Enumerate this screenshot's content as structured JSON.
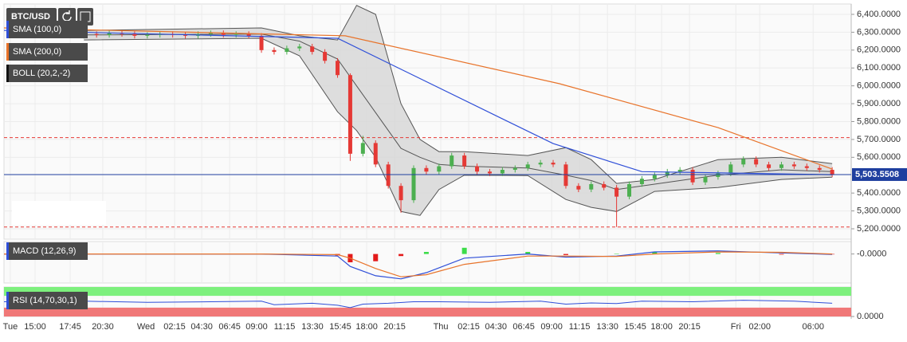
{
  "symbol": "BTC/USD",
  "chart_data": [
    {
      "type": "candlestick",
      "x": [
        0,
        1,
        2,
        3,
        4,
        5,
        6,
        7,
        8,
        9,
        10,
        11,
        12,
        13,
        14,
        15,
        16,
        17,
        18,
        19,
        20,
        21,
        22,
        23,
        24,
        25,
        26,
        27,
        28,
        29,
        30,
        31,
        32,
        33,
        34,
        35,
        36,
        37,
        38,
        39,
        40,
        41,
        42,
        43,
        44,
        45,
        46,
        47,
        48,
        49,
        50,
        51,
        52,
        53,
        54,
        55,
        56,
        57,
        58,
        59
      ],
      "open": [
        6280,
        6290,
        6285,
        6295,
        6290,
        6280,
        6285,
        6290,
        6285,
        6280,
        6290,
        6295,
        6285,
        6290,
        6280,
        6200,
        6190,
        6210,
        6220,
        6190,
        6140,
        6060,
        5620,
        5680,
        5560,
        5440,
        5360,
        5540,
        5520,
        5550,
        5610,
        5550,
        5520,
        5510,
        5530,
        5540,
        5560,
        5570,
        5560,
        5440,
        5420,
        5450,
        5430,
        5380,
        5450,
        5480,
        5500,
        5520,
        5530,
        5460,
        5490,
        5510,
        5560,
        5590,
        5560,
        5540,
        5560,
        5550,
        5540,
        5530
      ],
      "high": [
        6305,
        6305,
        6310,
        6310,
        6305,
        6300,
        6305,
        6305,
        6300,
        6305,
        6310,
        6310,
        6305,
        6305,
        6295,
        6215,
        6225,
        6235,
        6235,
        6205,
        6155,
        6070,
        5720,
        5695,
        5575,
        5455,
        5555,
        5555,
        5565,
        5625,
        5625,
        5565,
        5535,
        5545,
        5555,
        5575,
        5585,
        5585,
        5575,
        5455,
        5465,
        5465,
        5445,
        5465,
        5495,
        5515,
        5535,
        5545,
        5545,
        5505,
        5525,
        5575,
        5605,
        5605,
        5575,
        5575,
        5575,
        5565,
        5555,
        5545
      ],
      "low": [
        6265,
        6270,
        6270,
        6275,
        6265,
        6265,
        6270,
        6270,
        6265,
        6265,
        6275,
        6270,
        6270,
        6265,
        6185,
        6175,
        6175,
        6195,
        6175,
        6125,
        6045,
        5580,
        5605,
        5545,
        5425,
        5290,
        5345,
        5505,
        5505,
        5535,
        5535,
        5505,
        5495,
        5495,
        5515,
        5525,
        5545,
        5545,
        5425,
        5405,
        5405,
        5415,
        5210,
        5365,
        5435,
        5465,
        5485,
        5505,
        5445,
        5445,
        5475,
        5495,
        5545,
        5545,
        5525,
        5525,
        5535,
        5525,
        5515,
        5489
      ],
      "close": [
        6290,
        6285,
        6295,
        6290,
        6280,
        6285,
        6290,
        6285,
        6280,
        6290,
        6295,
        6285,
        6290,
        6280,
        6200,
        6190,
        6210,
        6220,
        6190,
        6140,
        6060,
        5620,
        5680,
        5560,
        5440,
        5360,
        5540,
        5520,
        5550,
        5610,
        5550,
        5520,
        5510,
        5530,
        5540,
        5560,
        5570,
        5560,
        5440,
        5420,
        5450,
        5430,
        5380,
        5450,
        5480,
        5500,
        5520,
        5530,
        5460,
        5490,
        5510,
        5560,
        5590,
        5560,
        5540,
        5560,
        5550,
        5540,
        5530,
        5504
      ],
      "up_color": "#4caf50",
      "down_color": "#e53935",
      "series": [
        {
          "name": "SMA (100,0)",
          "color": "#2f4fd8",
          "x": [
            -6.3,
            20,
            37,
            44,
            59
          ],
          "values": [
            6310,
            6266,
            5677,
            5520,
            5503
          ]
        },
        {
          "name": "SMA (200,0)",
          "color": "#e8732a",
          "x": [
            -6.3,
            20.6,
            37.5,
            50,
            59
          ],
          "values": [
            6324,
            6280,
            6012,
            5766,
            5534
          ]
        }
      ],
      "bands": {
        "name": "BOLL (20,2,-2)",
        "color": "#555555",
        "x": [
          0,
          14,
          17,
          20,
          21.5,
          23,
          25,
          26.5,
          28,
          30,
          35,
          38,
          40,
          42,
          45,
          50,
          55,
          59
        ],
        "upper": [
          6310,
          6324,
          6280,
          6257,
          6450,
          6400,
          5900,
          5700,
          5632,
          5632,
          5610,
          5654,
          5587,
          5454,
          5476,
          5587,
          5600,
          5565
        ],
        "middle": [
          6285,
          6290,
          6250,
          6150,
          6000,
          5850,
          5650,
          5600,
          5560,
          5550,
          5540,
          5500,
          5470,
          5420,
          5450,
          5500,
          5530,
          5520
        ],
        "lower": [
          6257,
          6266,
          6168,
          5855,
          5750,
          5600,
          5297,
          5275,
          5420,
          5500,
          5498,
          5364,
          5320,
          5297,
          5409,
          5431,
          5476,
          5489
        ]
      },
      "levels": [
        5710,
        5210
      ],
      "level_color": "#e53935",
      "last_price": {
        "value": 5503.5508,
        "label": "5,503.5508"
      },
      "last_price_color": "#1f3f9f",
      "ylim": [
        5142,
        6458
      ],
      "yticks": [
        {
          "value": 6400,
          "label": "6,400.0000"
        },
        {
          "value": 6300,
          "label": "6,300.0000"
        },
        {
          "value": 6200,
          "label": "6,200.0000"
        },
        {
          "value": 6100,
          "label": "6,100.0000"
        },
        {
          "value": 6000,
          "label": "6,000.0000"
        },
        {
          "value": 5900,
          "label": "5,900.0000"
        },
        {
          "value": 5800,
          "label": "5,800.0000"
        },
        {
          "value": 5700,
          "label": "5,700.0000"
        },
        {
          "value": 5600,
          "label": "5,600.0000"
        },
        {
          "value": 5400,
          "label": "5,400.0000"
        },
        {
          "value": 5300,
          "label": "5,300.0000"
        },
        {
          "value": 5200,
          "label": "5,200.0000"
        }
      ],
      "xlim": [
        -6.3,
        60.5
      ],
      "xticks": [
        {
          "value": -5.8,
          "label": "Tue"
        },
        {
          "value": -3.85,
          "label": "15:00"
        },
        {
          "value": -1.08,
          "label": "17:45"
        },
        {
          "value": 1.49,
          "label": "20:30"
        },
        {
          "value": 4.89,
          "label": "Wed"
        },
        {
          "value": 7.15,
          "label": "02:15"
        },
        {
          "value": 9.29,
          "label": "04:30"
        },
        {
          "value": 11.49,
          "label": "06:45"
        },
        {
          "value": 13.62,
          "label": "09:00"
        },
        {
          "value": 15.82,
          "label": "11:15"
        },
        {
          "value": 18.02,
          "label": "13:30"
        },
        {
          "value": 20.22,
          "label": "15:45"
        },
        {
          "value": 22.3,
          "label": "18:00"
        },
        {
          "value": 24.5,
          "label": "20:15"
        },
        {
          "value": 28.14,
          "label": "Thu"
        },
        {
          "value": 30.34,
          "label": "02:15"
        },
        {
          "value": 32.49,
          "label": "04:30"
        },
        {
          "value": 34.68,
          "label": "06:45"
        },
        {
          "value": 36.88,
          "label": "09:00"
        },
        {
          "value": 39.08,
          "label": "11:15"
        },
        {
          "value": 41.28,
          "label": "13:30"
        },
        {
          "value": 43.48,
          "label": "15:45"
        },
        {
          "value": 45.55,
          "label": "18:00"
        },
        {
          "value": 47.75,
          "label": "20:15"
        },
        {
          "value": 51.4,
          "label": "Fri"
        },
        {
          "value": 53.29,
          "label": "02:00"
        },
        {
          "value": 57.5,
          "label": "06:00"
        }
      ],
      "grid": true
    },
    {
      "type": "macd",
      "name": "MACD (12,26,9)",
      "x": [
        -6.3,
        14,
        20,
        21,
        23,
        25,
        27,
        30,
        35,
        38,
        42,
        45,
        50,
        55,
        59
      ],
      "series": [
        {
          "name": "MACD",
          "color": "#2f4fd8",
          "values": [
            0,
            0,
            -10,
            -60,
            -105,
            -120,
            -90,
            -20,
            0,
            -15,
            -10,
            10,
            15,
            5,
            -2
          ]
        },
        {
          "name": "Signal",
          "color": "#e8732a",
          "values": [
            0,
            0,
            -3,
            -20,
            -70,
            -110,
            -100,
            -50,
            -10,
            -10,
            -12,
            0,
            10,
            8,
            0
          ]
        }
      ],
      "histogram": [
        0,
        0,
        -7,
        -40,
        -35,
        -10,
        10,
        30,
        10,
        -5,
        2,
        10,
        5,
        -3,
        -2
      ],
      "ylim": [
        -140,
        60
      ],
      "yticks": [
        {
          "value": 0,
          "label": "-0.0000"
        }
      ]
    },
    {
      "type": "rsi",
      "name": "RSI (14,70,30,1)",
      "color": "#2f4fd8",
      "x": [
        -6.3,
        0,
        5,
        10,
        14,
        15,
        18,
        20,
        21,
        22,
        24,
        26,
        28,
        32,
        36,
        38,
        40,
        42,
        44,
        48,
        52,
        56,
        59
      ],
      "values": [
        50,
        52,
        48,
        50,
        52,
        40,
        45,
        38,
        30,
        42,
        45,
        50,
        50,
        48,
        52,
        42,
        46,
        44,
        52,
        50,
        55,
        52,
        45
      ],
      "overbought": 70,
      "oversold": 30,
      "ylim": [
        0,
        100
      ],
      "yticks": [
        {
          "value": 0,
          "label": "0.0000"
        }
      ]
    }
  ]
}
